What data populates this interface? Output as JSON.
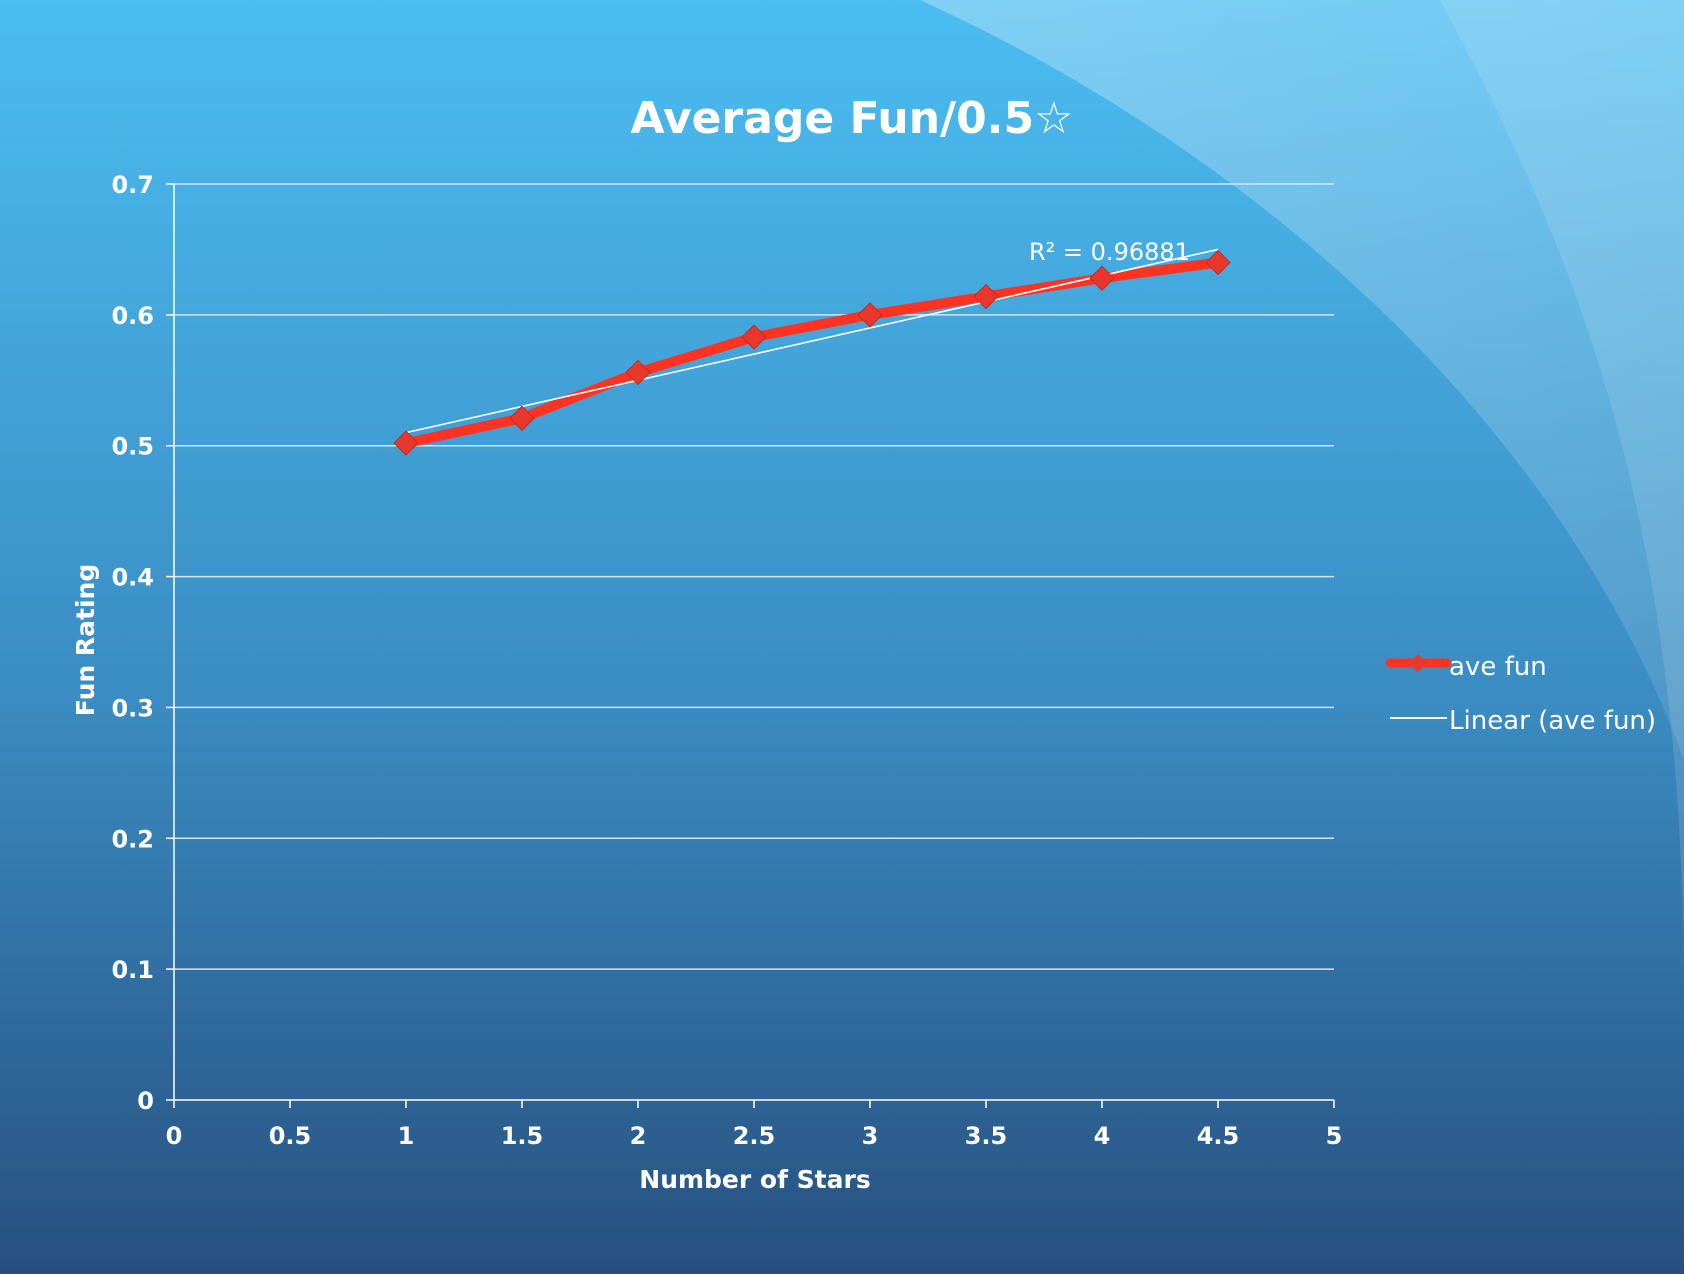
{
  "chart_data": {
    "type": "line",
    "title": "Average Fun/0.5☆",
    "xlabel": "Number of Stars",
    "ylabel": "Fun Rating",
    "xlim": [
      0,
      5
    ],
    "ylim": [
      0,
      0.7
    ],
    "x_ticks": [
      "0",
      "0.5",
      "1",
      "1.5",
      "2",
      "2.5",
      "3",
      "3.5",
      "4",
      "4.5",
      "5"
    ],
    "y_ticks": [
      "0",
      "0.1",
      "0.2",
      "0.3",
      "0.4",
      "0.5",
      "0.6",
      "0.7"
    ],
    "grid": true,
    "legend_position": "right",
    "series": [
      {
        "name": "ave fun",
        "color": "#ff3322",
        "marker": "diamond",
        "x": [
          1,
          1.5,
          2,
          2.5,
          3,
          3.5,
          4,
          4.5
        ],
        "y": [
          0.502,
          0.521,
          0.556,
          0.583,
          0.6,
          0.614,
          0.628,
          0.64
        ]
      },
      {
        "name": "Linear (ave fun)",
        "color": "#ffffff",
        "trendline": true,
        "x": [
          1,
          4.5
        ],
        "y": [
          0.51,
          0.65
        ]
      }
    ],
    "annotation": "R² = 0.96881"
  },
  "colors": {
    "background_top": "#4bbcf0",
    "background_bottom": "#2a5585",
    "gridline": "#d6e4ee",
    "text": "#ffffff"
  }
}
